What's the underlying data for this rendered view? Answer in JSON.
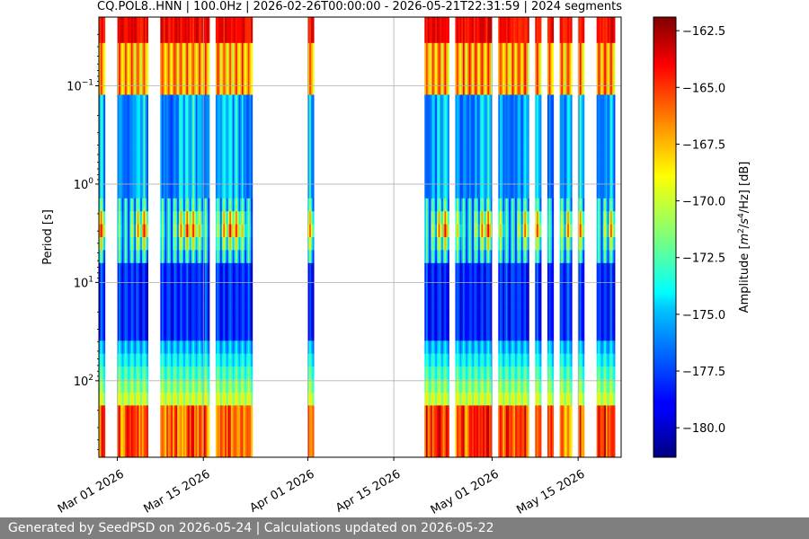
{
  "chart_data": {
    "type": "heatmap",
    "title": "CQ.POL8..HNN | 100.0Hz | 2026-02-26T00:00:00 - 2026-05-21T22:31:59 | 2024 segments",
    "xlabel": "",
    "ylabel": "Period [s]",
    "colorbar_label": "Amplitude [m²/s⁴/Hz] [dB]",
    "colorbar_label_parts": {
      "pre": "Amplitude [",
      "m": "m",
      "exp1": "2",
      "slash": "/",
      "s": "s",
      "exp2": "4",
      "rest": "/Hz] [dB]"
    },
    "colormap": "jet",
    "x_range": [
      "2026-02-26",
      "2026-05-22"
    ],
    "x_ticks": [
      "2026-03-01",
      "2026-03-15",
      "2026-04-01",
      "2026-04-15",
      "2026-05-01",
      "2026-05-15"
    ],
    "x_tick_labels": [
      "Mar 01 2026",
      "Mar 15 2026",
      "Apr 01 2026",
      "Apr 15 2026",
      "May 01 2026",
      "May 15 2026"
    ],
    "y_scale": "log",
    "y_inverted": true,
    "y_range": [
      0.02,
      600
    ],
    "y_ticks": [
      0.1,
      1,
      10,
      100
    ],
    "y_tick_labels": [
      {
        "base": "10",
        "exp": "−1"
      },
      {
        "base": "10",
        "exp": "0"
      },
      {
        "base": "10",
        "exp": "1"
      },
      {
        "base": "10",
        "exp": "2"
      }
    ],
    "colorbar_range": [
      -181.3,
      -161.9
    ],
    "colorbar_ticks": [
      -162.5,
      -165.0,
      -167.5,
      -170.0,
      -172.5,
      -175.0,
      -177.5,
      -180.0
    ],
    "colorbar_tick_labels": [
      "−162.5",
      "−165.0",
      "−167.5",
      "−170.0",
      "−172.5",
      "−175.0",
      "−177.5",
      "−180.0"
    ],
    "grid": true,
    "data_coverage": [
      [
        "2026-02-26",
        "2026-02-27"
      ],
      [
        "2026-03-01",
        "2026-03-06"
      ],
      [
        "2026-03-08",
        "2026-03-16"
      ],
      [
        "2026-03-17",
        "2026-03-23"
      ],
      [
        "2026-04-01",
        "2026-04-02"
      ],
      [
        "2026-04-20",
        "2026-04-24"
      ],
      [
        "2026-04-25",
        "2026-05-01"
      ],
      [
        "2026-05-02",
        "2026-05-07"
      ],
      [
        "2026-05-08",
        "2026-05-09"
      ],
      [
        "2026-05-10",
        "2026-05-11"
      ],
      [
        "2026-05-12",
        "2026-05-14"
      ],
      [
        "2026-05-15",
        "2026-05-16"
      ],
      [
        "2026-05-18",
        "2026-05-21"
      ]
    ]
  },
  "footer": {
    "text": "Generated by SeedPSD on 2026-05-24 | Calculations updated on 2026-05-22"
  }
}
